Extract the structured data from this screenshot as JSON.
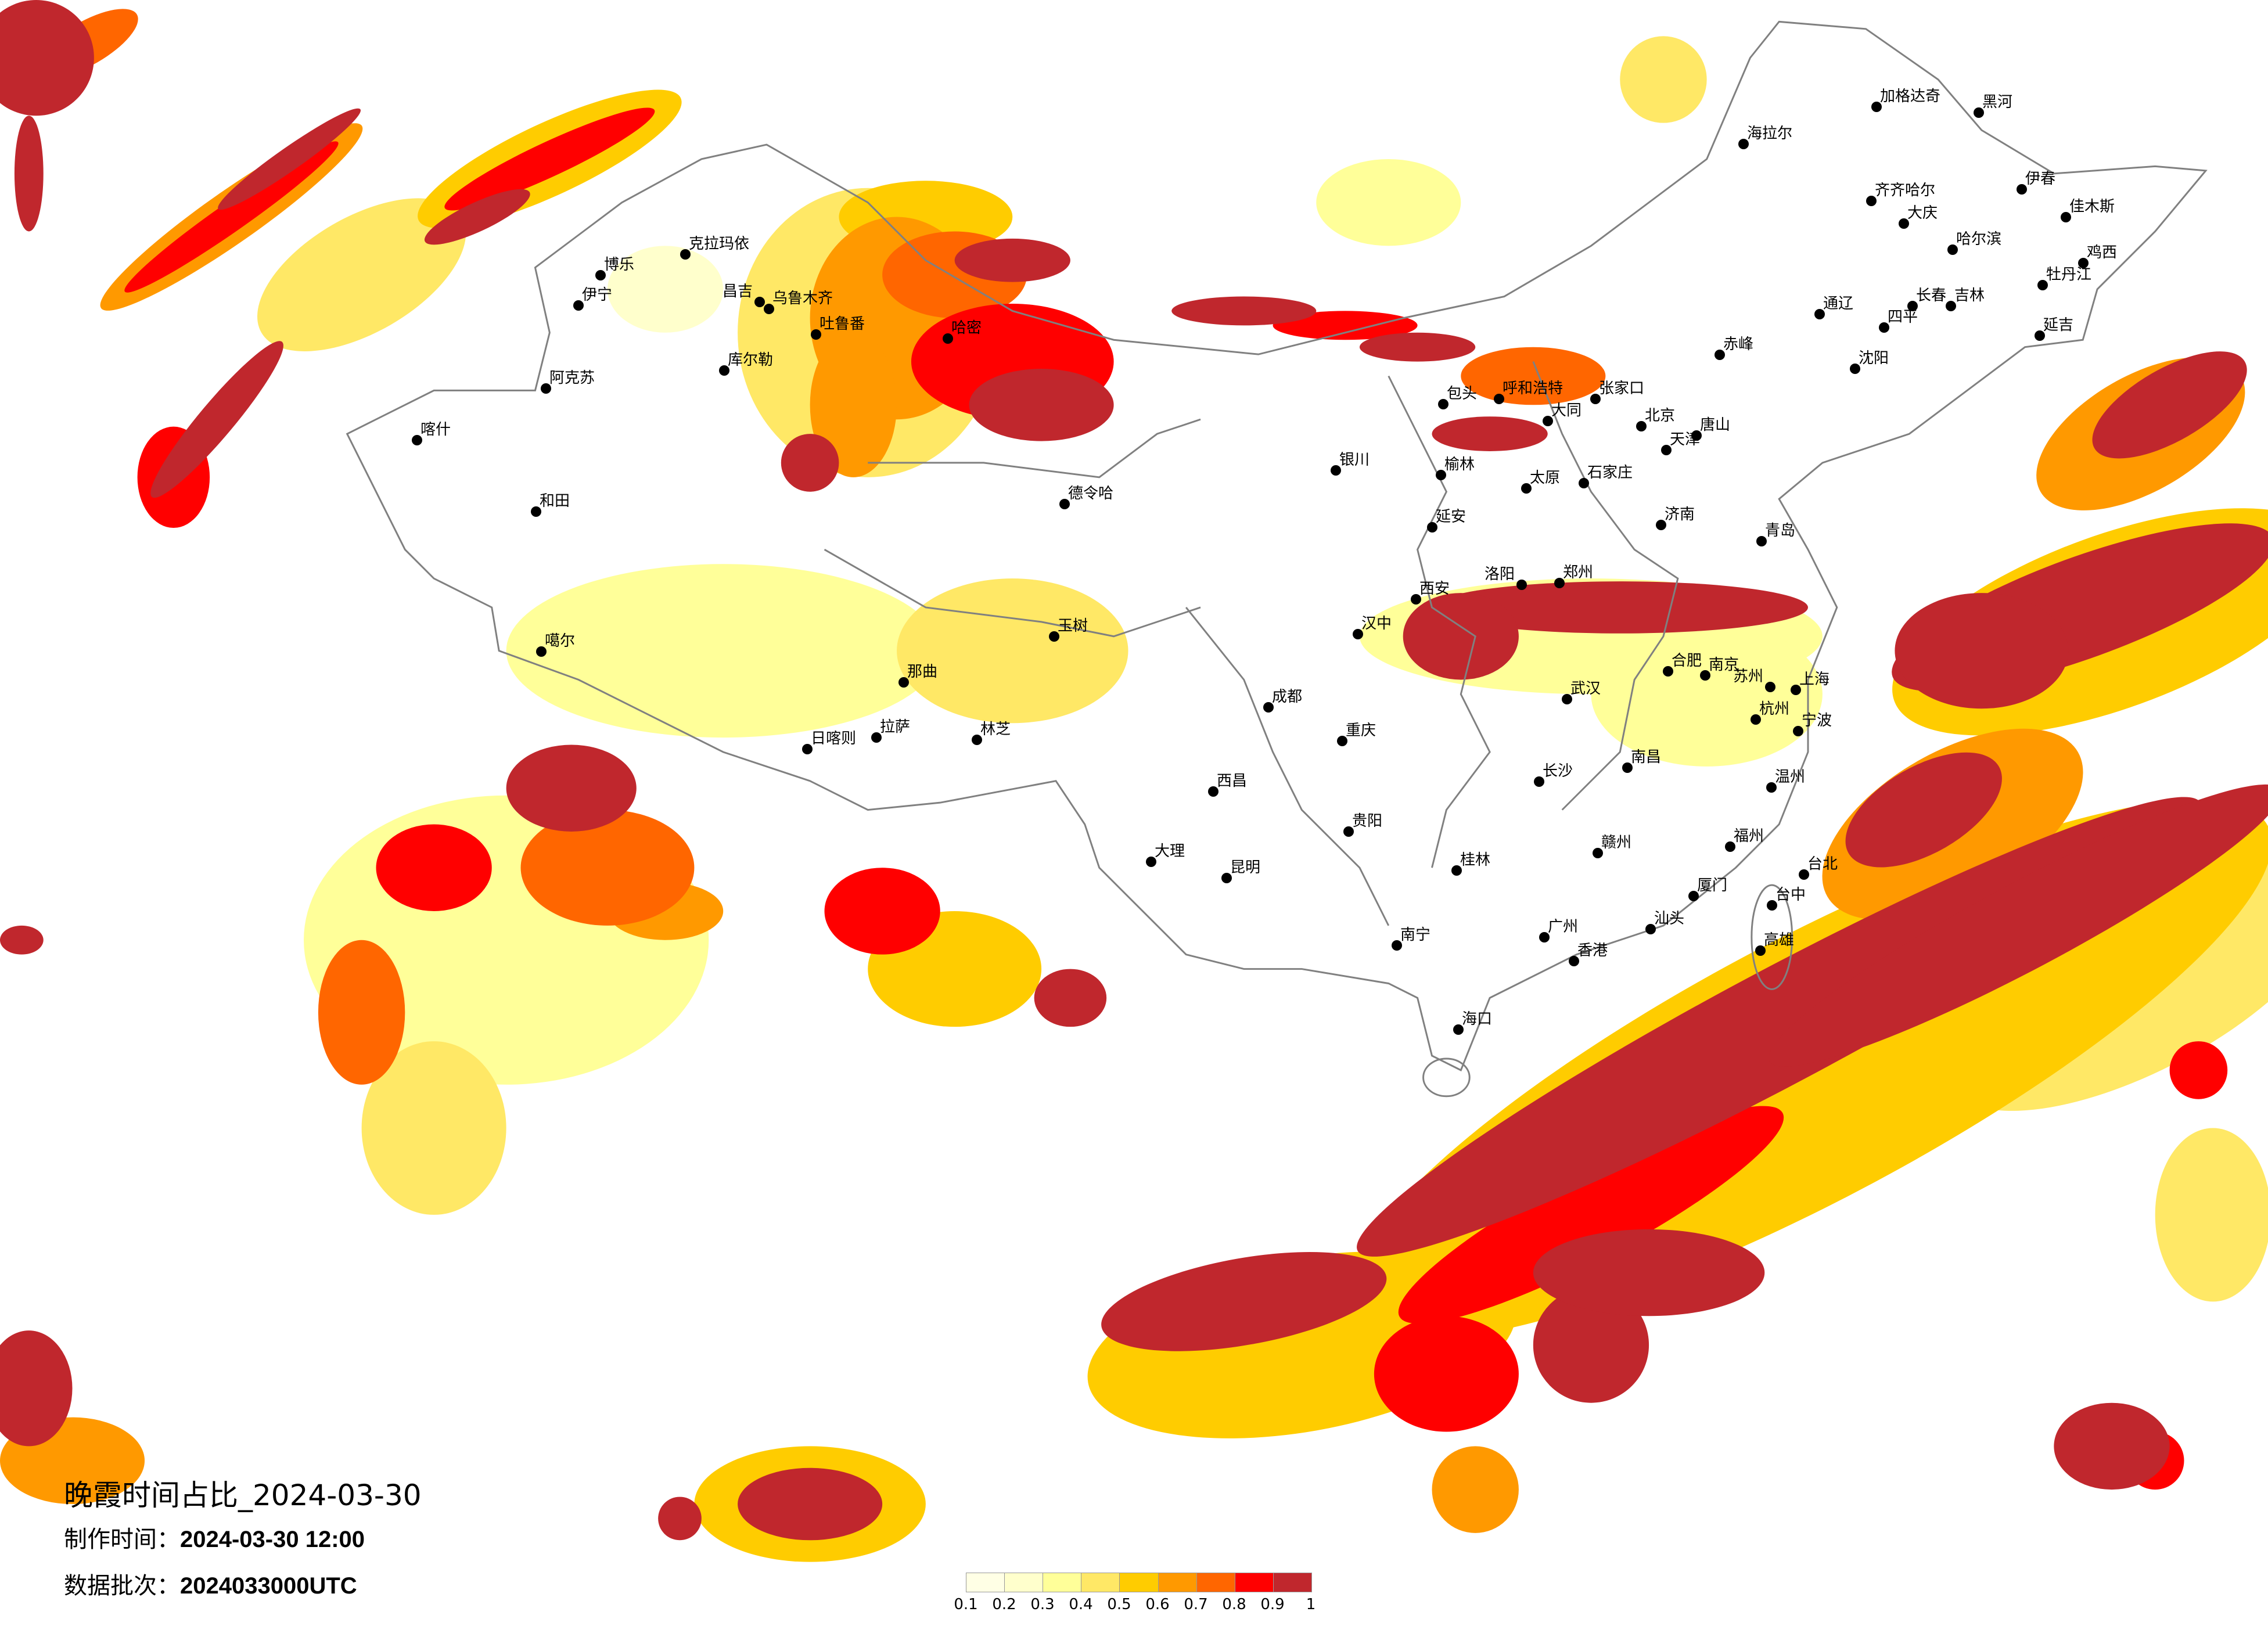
{
  "title": "晚霞时间占比_2024-03-30",
  "production_time": {
    "label": "制作时间：",
    "value": "2024-03-30 12:00"
  },
  "data_batch": {
    "label": "数据批次：",
    "value": "2024033000UTC"
  },
  "legend": {
    "labels": [
      "0.1",
      "0.2",
      "0.3",
      "0.4",
      "0.5",
      "0.6",
      "0.7",
      "0.8",
      "0.9",
      "1"
    ],
    "colors": [
      "#FFFFE5",
      "#FFFFCC",
      "#FFFF99",
      "#FFE866",
      "#FFCC00",
      "#FF9900",
      "#FF6600",
      "#FF0000",
      "#C0272D"
    ]
  },
  "map": {
    "boundary_color": "#808080",
    "city_marker_color": "#000000",
    "cities": [
      "北京",
      "天津",
      "石家庄",
      "太原",
      "呼和浩特",
      "包头",
      "济南",
      "郑州",
      "西安",
      "青岛",
      "大同",
      "张家口",
      "唐山",
      "洛阳",
      "延安",
      "银川",
      "榆林",
      "乌鲁木齐",
      "昌吉",
      "吐鲁番",
      "哈密",
      "库尔勒",
      "阿克苏",
      "伊宁",
      "博乐",
      "克拉玛依",
      "和田",
      "喀什",
      "哈尔滨",
      "长春",
      "吉林",
      "齐齐哈尔",
      "大庆",
      "海拉尔",
      "黑河",
      "加格达奇",
      "伊春",
      "佳木斯",
      "牡丹江",
      "延吉",
      "鸡西",
      "通辽",
      "赤峰",
      "沈阳",
      "四平",
      "长沙",
      "南昌",
      "贵阳",
      "桂林",
      "南宁",
      "广州",
      "香港",
      "福州",
      "厦门",
      "台北",
      "高雄",
      "台中",
      "海口",
      "汕头",
      "温州",
      "赣州",
      "上海",
      "南京",
      "杭州",
      "武汉",
      "合肥",
      "苏州",
      "宁波",
      "成都",
      "重庆",
      "昆明",
      "玉树",
      "汉中",
      "西昌",
      "大理",
      "拉萨",
      "日喀则",
      "那曲",
      "噶尔",
      "德令哈",
      "林芝"
    ]
  }
}
